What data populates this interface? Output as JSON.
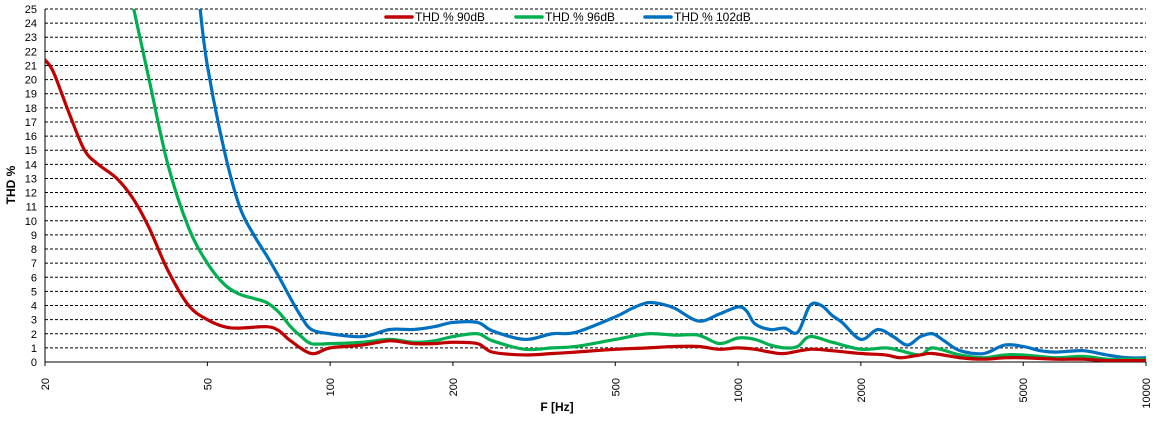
{
  "chart_data": {
    "type": "line",
    "xscale": "log",
    "xlabel": "F [Hz]",
    "ylabel": "THD %",
    "xlim": [
      20,
      10000
    ],
    "ylim": [
      0,
      25
    ],
    "xticks": [
      20,
      50,
      100,
      200,
      500,
      1000,
      2000,
      5000,
      10000
    ],
    "yticks": [
      0,
      1,
      2,
      3,
      4,
      5,
      6,
      7,
      8,
      9,
      10,
      11,
      12,
      13,
      14,
      15,
      16,
      17,
      18,
      19,
      20,
      21,
      22,
      23,
      24,
      25
    ],
    "grid": "horizontal dashed",
    "legend": "top",
    "series": [
      {
        "name": "THD % 90dB",
        "color": "#c00000",
        "x": [
          20,
          21,
          23,
          25,
          27,
          30,
          33,
          36,
          40,
          45,
          50,
          55,
          60,
          70,
          75,
          80,
          90,
          100,
          120,
          140,
          160,
          180,
          200,
          230,
          250,
          300,
          350,
          400,
          500,
          600,
          700,
          800,
          900,
          1000,
          1100,
          1200,
          1300,
          1500,
          1700,
          2000,
          2300,
          2500,
          2800,
          3000,
          3500,
          4000,
          4500,
          5000,
          6000,
          7000,
          8000,
          9000,
          10000
        ],
        "y": [
          21.4,
          20.5,
          17.5,
          15,
          14,
          13,
          11.5,
          9.5,
          6.5,
          4,
          3,
          2.5,
          2.4,
          2.5,
          2.2,
          1.5,
          0.6,
          1,
          1.2,
          1.5,
          1.3,
          1.3,
          1.4,
          1.3,
          0.7,
          0.5,
          0.6,
          0.7,
          0.9,
          1,
          1.1,
          1.1,
          0.9,
          1,
          0.9,
          0.7,
          0.6,
          0.9,
          0.8,
          0.6,
          0.5,
          0.3,
          0.5,
          0.6,
          0.3,
          0.2,
          0.3,
          0.3,
          0.2,
          0.2,
          0.1,
          0.1,
          0.1
        ]
      },
      {
        "name": "THD % 96dB",
        "color": "#00b050",
        "x": [
          33,
          36,
          40,
          45,
          50,
          55,
          60,
          65,
          70,
          75,
          80,
          85,
          90,
          100,
          120,
          140,
          160,
          180,
          200,
          230,
          250,
          300,
          350,
          400,
          500,
          600,
          700,
          800,
          900,
          1000,
          1100,
          1200,
          1300,
          1400,
          1500,
          1700,
          2000,
          2300,
          2500,
          2800,
          3000,
          3500,
          4000,
          4500,
          5000,
          6000,
          7000,
          8000,
          9000,
          10000
        ],
        "y": [
          25,
          20,
          14,
          9.5,
          7,
          5.5,
          4.8,
          4.5,
          4.2,
          3.5,
          2.5,
          1.8,
          1.3,
          1.3,
          1.4,
          1.6,
          1.4,
          1.5,
          1.8,
          2,
          1.5,
          0.9,
          1,
          1.1,
          1.6,
          2,
          1.9,
          1.9,
          1.3,
          1.7,
          1.6,
          1.2,
          1,
          1.1,
          1.8,
          1.4,
          0.9,
          1,
          0.8,
          0.5,
          1,
          0.5,
          0.3,
          0.5,
          0.5,
          0.3,
          0.4,
          0.2,
          0.2,
          0.2
        ]
      },
      {
        "name": "THD % 102dB",
        "color": "#0070c0",
        "x": [
          48,
          50,
          55,
          60,
          65,
          70,
          75,
          80,
          85,
          90,
          100,
          120,
          140,
          160,
          180,
          200,
          230,
          250,
          300,
          350,
          400,
          500,
          550,
          600,
          650,
          700,
          800,
          900,
          1000,
          1050,
          1100,
          1200,
          1300,
          1400,
          1500,
          1600,
          1700,
          1800,
          2000,
          2200,
          2400,
          2600,
          2800,
          3000,
          3200,
          3500,
          4000,
          4500,
          5000,
          5500,
          6000,
          7000,
          8000,
          9000,
          10000
        ],
        "y": [
          25,
          21,
          15,
          11,
          9,
          7.5,
          6,
          4.5,
          3.2,
          2.3,
          2,
          1.8,
          2.3,
          2.3,
          2.5,
          2.8,
          2.8,
          2.2,
          1.6,
          2,
          2.1,
          3.2,
          3.8,
          4.2,
          4.1,
          3.8,
          2.9,
          3.4,
          3.9,
          3.6,
          2.7,
          2.3,
          2.4,
          2.1,
          4,
          4,
          3.3,
          2.8,
          1.6,
          2.3,
          1.8,
          1.2,
          1.8,
          2,
          1.5,
          0.8,
          0.6,
          1.2,
          1.1,
          0.8,
          0.7,
          0.8,
          0.5,
          0.3,
          0.3
        ]
      }
    ]
  }
}
